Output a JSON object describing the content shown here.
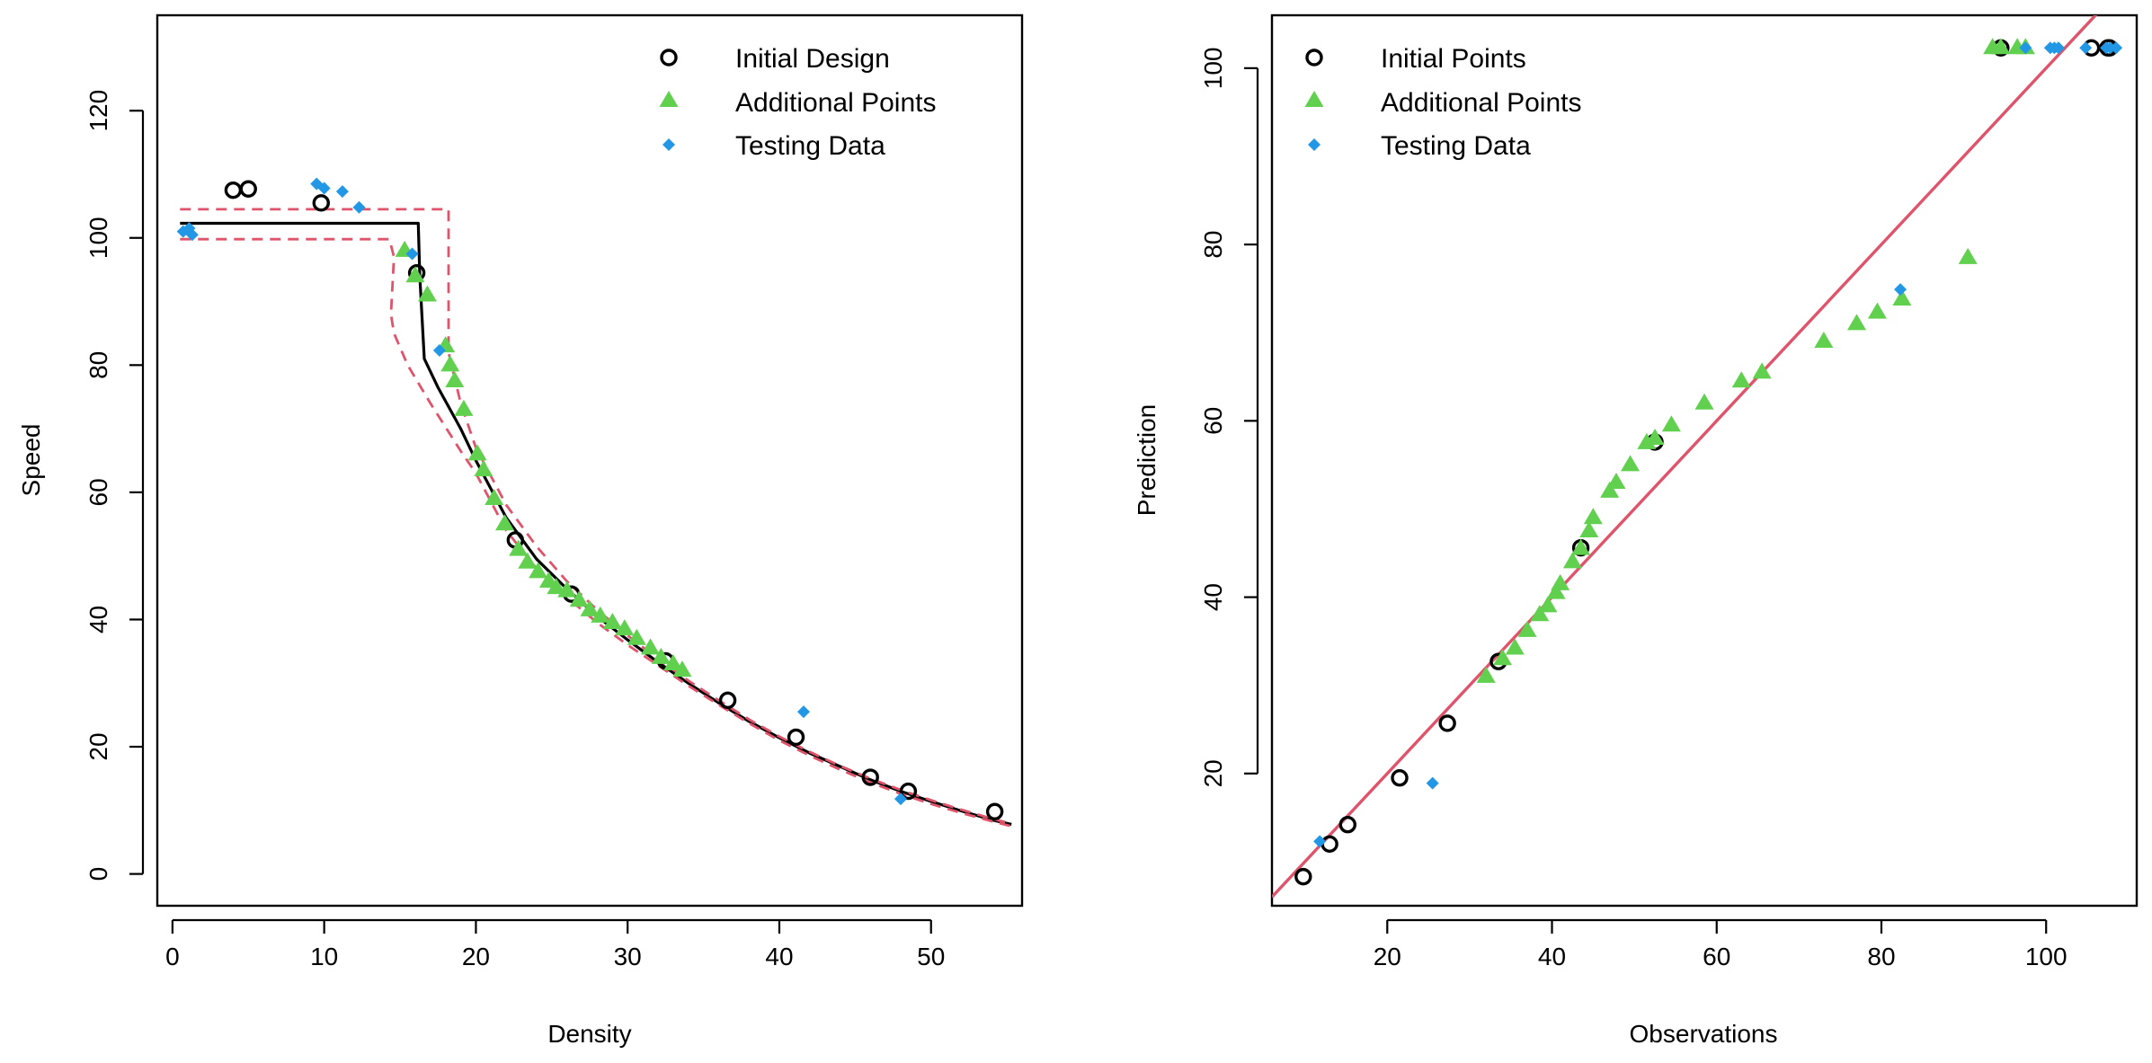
{
  "colors": {
    "initial": "#000000",
    "additional": "#61D04F",
    "testing": "#2297E6",
    "fit_line": "#000000",
    "bounds": "#DF536B",
    "identity_line": "#DF536B"
  },
  "chart_data": [
    {
      "type": "scatter",
      "xlabel": "Density",
      "ylabel": "Speed",
      "xlim": [
        -1,
        56
      ],
      "ylim": [
        -5,
        135
      ],
      "xticks": [
        0,
        10,
        20,
        30,
        40,
        50
      ],
      "yticks": [
        0,
        20,
        40,
        60,
        80,
        100,
        120
      ],
      "legend": {
        "placement": "top-right",
        "entries": [
          "Initial Design",
          "Additional Points",
          "Testing Data"
        ]
      },
      "series": [
        {
          "name": "Initial Design",
          "marker": "open-circle",
          "x": [
            4.0,
            5.0,
            9.8,
            16.1,
            22.6,
            26.3,
            32.5,
            36.6,
            41.1,
            46.0,
            48.5,
            54.2
          ],
          "y": [
            107.5,
            107.7,
            105.5,
            94.5,
            52.5,
            44.0,
            33.5,
            27.3,
            21.5,
            15.2,
            13.0,
            9.8
          ]
        },
        {
          "name": "Additional Points",
          "marker": "filled-triangle",
          "x": [
            15.3,
            16.0,
            16.8,
            18.0,
            18.3,
            18.6,
            19.2,
            20.1,
            20.5,
            21.2,
            21.9,
            22.8,
            23.4,
            24.1,
            24.8,
            25.3,
            26.0,
            26.8,
            27.5,
            28.2,
            29.0,
            29.8,
            30.6,
            31.5,
            32.2,
            33.0,
            33.6
          ],
          "y": [
            98.0,
            94.0,
            91.0,
            83.0,
            80.0,
            77.5,
            73.0,
            66.0,
            63.5,
            59.0,
            55.0,
            51.0,
            49.0,
            47.5,
            46.0,
            45.0,
            44.5,
            43.0,
            41.5,
            40.5,
            39.5,
            38.5,
            37.0,
            35.5,
            34.0,
            33.0,
            32.0
          ]
        },
        {
          "name": "Testing Data",
          "marker": "filled-diamond",
          "x": [
            0.7,
            1.1,
            1.3,
            9.5,
            10.0,
            11.2,
            12.3,
            15.8,
            17.6,
            41.6,
            48.0
          ],
          "y": [
            101.0,
            101.5,
            100.5,
            108.5,
            107.8,
            107.3,
            104.8,
            97.5,
            82.3,
            25.5,
            11.8
          ]
        }
      ],
      "lines": [
        {
          "name": "Fit",
          "style": "solid",
          "x": [
            0.5,
            2,
            4,
            6,
            8,
            10,
            12,
            14,
            16.2,
            16.3,
            16.6,
            17.5,
            19,
            20,
            22,
            24,
            26,
            28,
            30,
            32,
            34,
            36,
            38,
            40,
            42,
            44,
            46,
            48,
            50,
            52,
            54,
            55.3
          ],
          "y": [
            102.3,
            102.3,
            102.3,
            102.3,
            102.3,
            102.3,
            102.3,
            102.3,
            102.3,
            94.0,
            81.0,
            76.5,
            70.0,
            65.0,
            56.0,
            49.5,
            44.8,
            40.5,
            36.8,
            33.3,
            30.0,
            26.9,
            24.0,
            21.4,
            19.0,
            16.9,
            14.8,
            13.0,
            11.4,
            9.9,
            8.5,
            7.8
          ]
        },
        {
          "name": "Upper bound",
          "style": "dashed",
          "x": [
            0.5,
            4,
            8,
            12,
            16,
            18.2,
            18.2,
            18.3,
            19,
            20,
            22,
            24,
            26,
            28,
            30,
            32,
            34,
            36,
            38,
            40,
            42,
            44,
            46,
            48,
            50,
            52,
            54,
            55.3
          ],
          "y": [
            104.5,
            104.5,
            104.5,
            104.5,
            104.5,
            104.5,
            82.0,
            81.0,
            74.0,
            67.0,
            58.0,
            51.5,
            46.0,
            41.5,
            37.5,
            33.8,
            30.4,
            27.3,
            24.3,
            21.6,
            19.2,
            17.0,
            15.0,
            13.2,
            11.6,
            10.1,
            8.7,
            7.9
          ]
        },
        {
          "name": "Lower bound",
          "style": "dashed",
          "x": [
            0.5,
            4,
            8,
            12,
            14.3,
            14.6,
            14.4,
            14.6,
            15.5,
            17,
            19,
            20,
            22,
            24,
            26,
            28,
            30,
            32,
            34,
            36,
            38,
            40,
            42,
            44,
            46,
            48,
            50,
            52,
            54,
            55.3
          ],
          "y": [
            99.8,
            99.8,
            99.8,
            99.8,
            99.8,
            97.0,
            88.0,
            85.0,
            80.0,
            74.0,
            66.5,
            63.0,
            54.0,
            48.0,
            43.5,
            39.5,
            36.0,
            32.8,
            29.6,
            26.6,
            23.7,
            21.0,
            18.6,
            16.4,
            14.4,
            12.6,
            11.0,
            9.6,
            8.3,
            7.5
          ]
        }
      ]
    },
    {
      "type": "scatter",
      "xlabel": "Observations",
      "ylabel": "Prediction",
      "xlim": [
        6,
        111
      ],
      "ylim": [
        5,
        106
      ],
      "xticks": [
        20,
        40,
        60,
        80,
        100
      ],
      "yticks": [
        20,
        40,
        60,
        80,
        100
      ],
      "legend": {
        "placement": "top-left",
        "entries": [
          "Initial Points",
          "Additional Points",
          "Testing Data"
        ]
      },
      "series": [
        {
          "name": "Initial Points",
          "marker": "open-circle",
          "x": [
            9.8,
            13.0,
            15.2,
            21.5,
            27.3,
            33.5,
            43.5,
            52.5,
            94.5,
            105.5,
            107.5,
            107.7
          ],
          "y": [
            8.3,
            12.0,
            14.2,
            19.5,
            25.7,
            32.7,
            45.6,
            57.6,
            102.3,
            102.3,
            102.3,
            102.3
          ]
        },
        {
          "name": "Additional Points",
          "marker": "filled-triangle",
          "x": [
            32.0,
            34.0,
            35.5,
            37.0,
            38.5,
            39.5,
            40.5,
            41.0,
            42.5,
            43.5,
            44.5,
            45.0,
            47.0,
            47.8,
            49.5,
            51.5,
            52.5,
            54.5,
            58.5,
            63.0,
            65.5,
            73.0,
            77.0,
            79.5,
            82.5,
            90.5,
            93.5,
            94.5,
            96.5,
            97.5
          ],
          "y": [
            31.0,
            33.0,
            34.2,
            36.2,
            38.0,
            39.0,
            40.5,
            41.5,
            44.0,
            45.5,
            47.5,
            49.0,
            52.0,
            53.0,
            55.0,
            57.5,
            58.0,
            59.5,
            62.0,
            64.5,
            65.5,
            69.0,
            71.0,
            72.3,
            73.8,
            78.5,
            102.3,
            102.3,
            102.3,
            102.3
          ]
        },
        {
          "name": "Testing Data",
          "marker": "filled-diamond",
          "x": [
            11.8,
            25.5,
            82.3,
            97.5,
            100.5,
            101.0,
            101.5,
            104.8,
            107.3,
            107.8,
            108.5
          ],
          "y": [
            12.3,
            18.9,
            74.9,
            102.3,
            102.3,
            102.3,
            102.3,
            102.3,
            102.3,
            102.3,
            102.3
          ]
        }
      ],
      "lines": [
        {
          "name": "Identity",
          "style": "solid",
          "x": [
            6,
            111
          ],
          "y": [
            6,
            111
          ]
        }
      ]
    }
  ]
}
